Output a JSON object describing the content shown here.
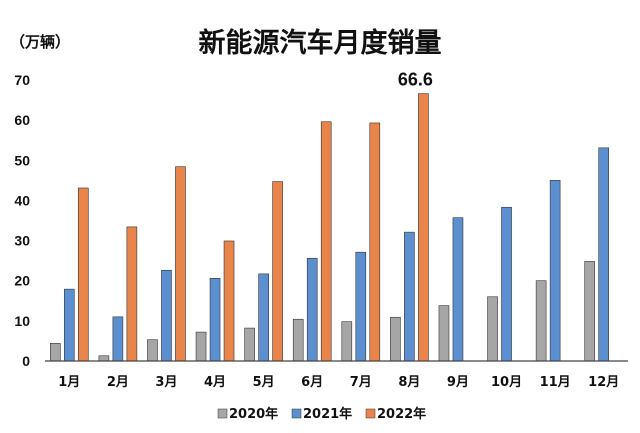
{
  "chart_data": {
    "type": "bar",
    "title": "新能源汽车月度销量",
    "unit_label": "（万辆）",
    "categories": [
      "1月",
      "2月",
      "3月",
      "4月",
      "5月",
      "6月",
      "7月",
      "8月",
      "9月",
      "10月",
      "11月",
      "12月"
    ],
    "series": [
      {
        "name": "2020年",
        "color": "#a6a6a6",
        "values": [
          4.4,
          1.3,
          5.3,
          7.2,
          8.2,
          10.4,
          9.8,
          10.9,
          13.8,
          16.0,
          20.0,
          24.8
        ]
      },
      {
        "name": "2021年",
        "color": "#5b8fd0",
        "values": [
          17.9,
          11.0,
          22.6,
          20.6,
          21.7,
          25.6,
          27.1,
          32.1,
          35.7,
          38.3,
          45.0,
          53.1
        ]
      },
      {
        "name": "2022年",
        "color": "#e9844b",
        "values": [
          43.1,
          33.4,
          48.4,
          29.9,
          44.7,
          59.6,
          59.3,
          66.6,
          null,
          null,
          null,
          null
        ]
      }
    ],
    "data_labels": [
      {
        "series": 2,
        "index": 7,
        "text": "66.6"
      }
    ],
    "ylim": [
      0,
      70
    ],
    "yticks": [
      "0",
      "10",
      "20",
      "30",
      "40",
      "50",
      "60",
      "70"
    ],
    "grid": false,
    "legend_position": "bottom"
  }
}
